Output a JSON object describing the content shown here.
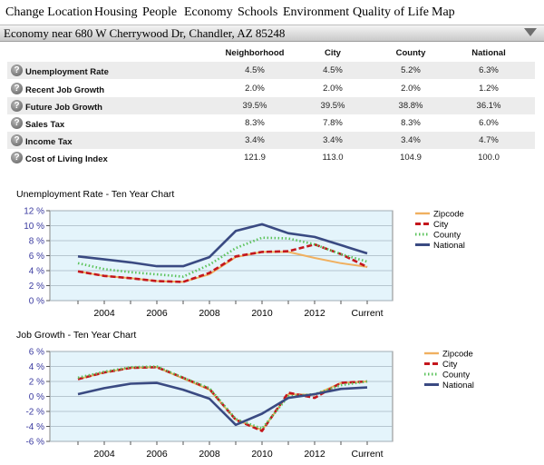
{
  "nav": {
    "items": [
      "Change Location",
      "Housing",
      "People",
      "Economy",
      "Schools",
      "Environment",
      "Quality of Life",
      "Map"
    ]
  },
  "section": {
    "title": "Economy near 680 W Cherrywood Dr, Chandler, AZ 85248",
    "help_glyph": "?"
  },
  "table": {
    "columns": [
      "Neighborhood",
      "City",
      "County",
      "National"
    ],
    "rows": [
      {
        "label": "Unemployment Rate",
        "values": [
          "4.5%",
          "4.5%",
          "5.2%",
          "6.3%"
        ]
      },
      {
        "label": "Recent Job Growth",
        "values": [
          "2.0%",
          "2.0%",
          "2.0%",
          "1.2%"
        ]
      },
      {
        "label": "Future Job Growth",
        "values": [
          "39.5%",
          "39.5%",
          "38.8%",
          "36.1%"
        ]
      },
      {
        "label": "Sales Tax",
        "values": [
          "8.3%",
          "7.8%",
          "8.3%",
          "6.0%"
        ]
      },
      {
        "label": "Income Tax",
        "values": [
          "3.4%",
          "3.4%",
          "3.4%",
          "4.7%"
        ]
      },
      {
        "label": "Cost of Living Index",
        "values": [
          "121.9",
          "113.0",
          "104.9",
          "100.0"
        ]
      }
    ]
  },
  "colors": {
    "plot_bg": "#e4f4fb",
    "zipcode": "#f0b060",
    "city": "#c4161c",
    "county": "#5cc35c",
    "national": "#3a4a82"
  },
  "chart_data": [
    {
      "type": "line",
      "title": "Unemployment Rate - Ten Year Chart",
      "x": [
        "2003",
        "2004",
        "2005",
        "2006",
        "2007",
        "2008",
        "2009",
        "2010",
        "2011",
        "2012",
        "2013",
        "Current"
      ],
      "x_tick_labels": [
        "2004",
        "2006",
        "2008",
        "2010",
        "2012",
        "Current"
      ],
      "y_tick_labels": [
        "0 %",
        "2 %",
        "4 %",
        "6 %",
        "8 %",
        "10 %",
        "12 %"
      ],
      "ylim": [
        0,
        12
      ],
      "grid": true,
      "legend": "right",
      "series": [
        {
          "name": "Zipcode",
          "values": [
            3.9,
            3.3,
            3.0,
            2.6,
            2.5,
            3.5,
            5.8,
            6.5,
            6.5,
            5.7,
            5.0,
            4.5
          ]
        },
        {
          "name": "City",
          "values": [
            3.9,
            3.3,
            3.0,
            2.6,
            2.5,
            3.7,
            5.9,
            6.5,
            6.6,
            7.5,
            6.2,
            4.5
          ]
        },
        {
          "name": "County",
          "values": [
            5.0,
            4.2,
            3.8,
            3.5,
            3.2,
            4.8,
            7.0,
            8.4,
            8.3,
            7.5,
            6.2,
            5.2
          ]
        },
        {
          "name": "National",
          "values": [
            5.9,
            5.5,
            5.1,
            4.6,
            4.6,
            5.8,
            9.3,
            10.2,
            9.0,
            8.5,
            7.4,
            6.3
          ]
        }
      ]
    },
    {
      "type": "line",
      "title": "Job Growth - Ten Year Chart",
      "x": [
        "2003",
        "2004",
        "2005",
        "2006",
        "2007",
        "2008",
        "2009",
        "2010",
        "2011",
        "2012",
        "2013",
        "Current"
      ],
      "x_tick_labels": [
        "2004",
        "2006",
        "2008",
        "2010",
        "2012",
        "Current"
      ],
      "y_tick_labels": [
        "-6 %",
        "-4 %",
        "-2 %",
        "0 %",
        "2 %",
        "4 %",
        "6 %"
      ],
      "ylim": [
        -6,
        6
      ],
      "grid": true,
      "legend": "right",
      "series": [
        {
          "name": "Zipcode",
          "values": [
            2.3,
            3.2,
            3.8,
            3.9,
            2.4,
            0.9,
            -3.1,
            -4.5,
            0.3,
            0.2,
            1.8,
            2.0
          ]
        },
        {
          "name": "City",
          "values": [
            2.3,
            3.2,
            3.8,
            3.9,
            2.5,
            1.0,
            -3.1,
            -4.6,
            0.5,
            -0.2,
            1.8,
            2.0
          ]
        },
        {
          "name": "County",
          "values": [
            2.5,
            3.3,
            3.9,
            4.0,
            2.5,
            1.1,
            -3.0,
            -4.3,
            0.0,
            0.3,
            1.5,
            2.0
          ]
        },
        {
          "name": "National",
          "values": [
            0.3,
            1.1,
            1.7,
            1.8,
            0.9,
            -0.3,
            -3.8,
            -2.3,
            -0.2,
            0.3,
            1.0,
            1.2
          ]
        }
      ]
    }
  ]
}
